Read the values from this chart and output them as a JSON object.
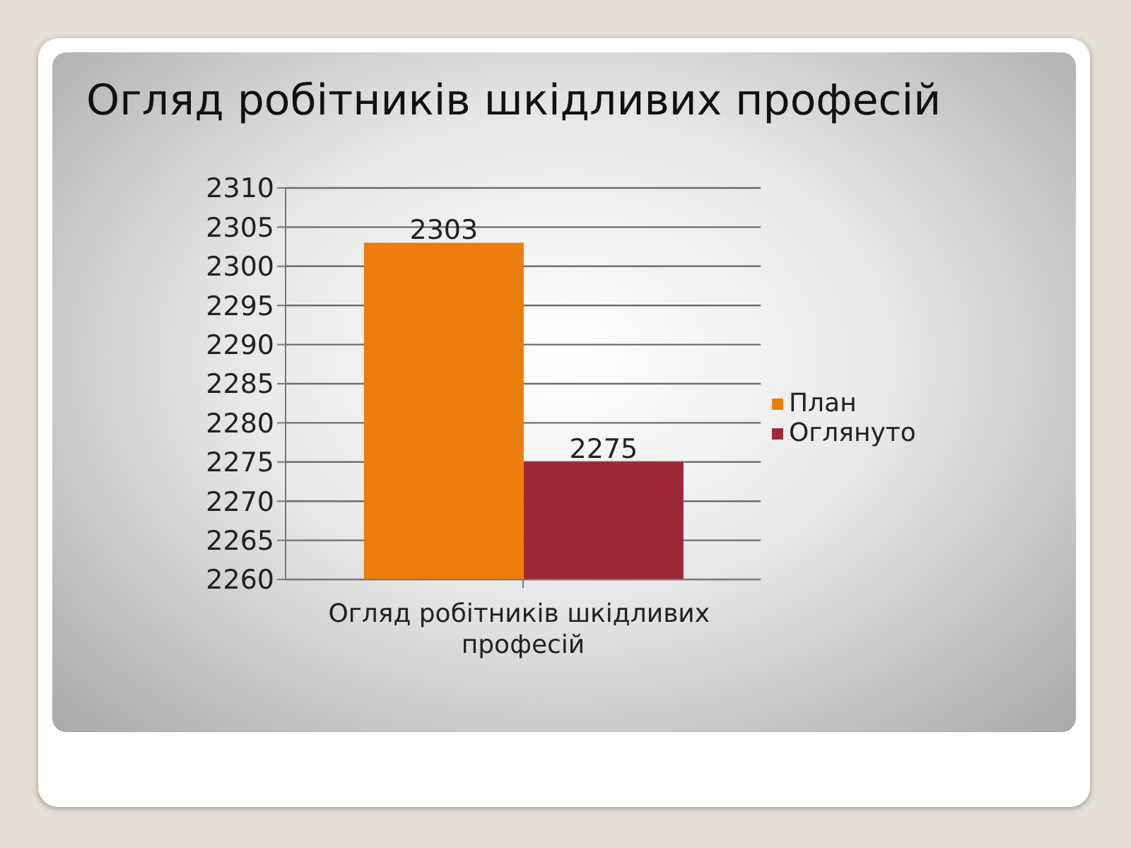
{
  "chart_data": {
    "type": "bar",
    "title": "Огляд робітників шкідливих професій",
    "categories": [
      "Огляд робітників шкідливих професій"
    ],
    "series": [
      {
        "name": "План",
        "color": "#ef7d0c",
        "values": [
          2303
        ]
      },
      {
        "name": "Оглянуто",
        "color": "#9e2738",
        "values": [
          2275
        ]
      }
    ],
    "ylim": [
      2260,
      2310
    ],
    "yticks": [
      2260,
      2265,
      2270,
      2275,
      2280,
      2285,
      2290,
      2295,
      2300,
      2305,
      2310
    ],
    "grid": "y",
    "legend": "right",
    "data_labels": true
  }
}
